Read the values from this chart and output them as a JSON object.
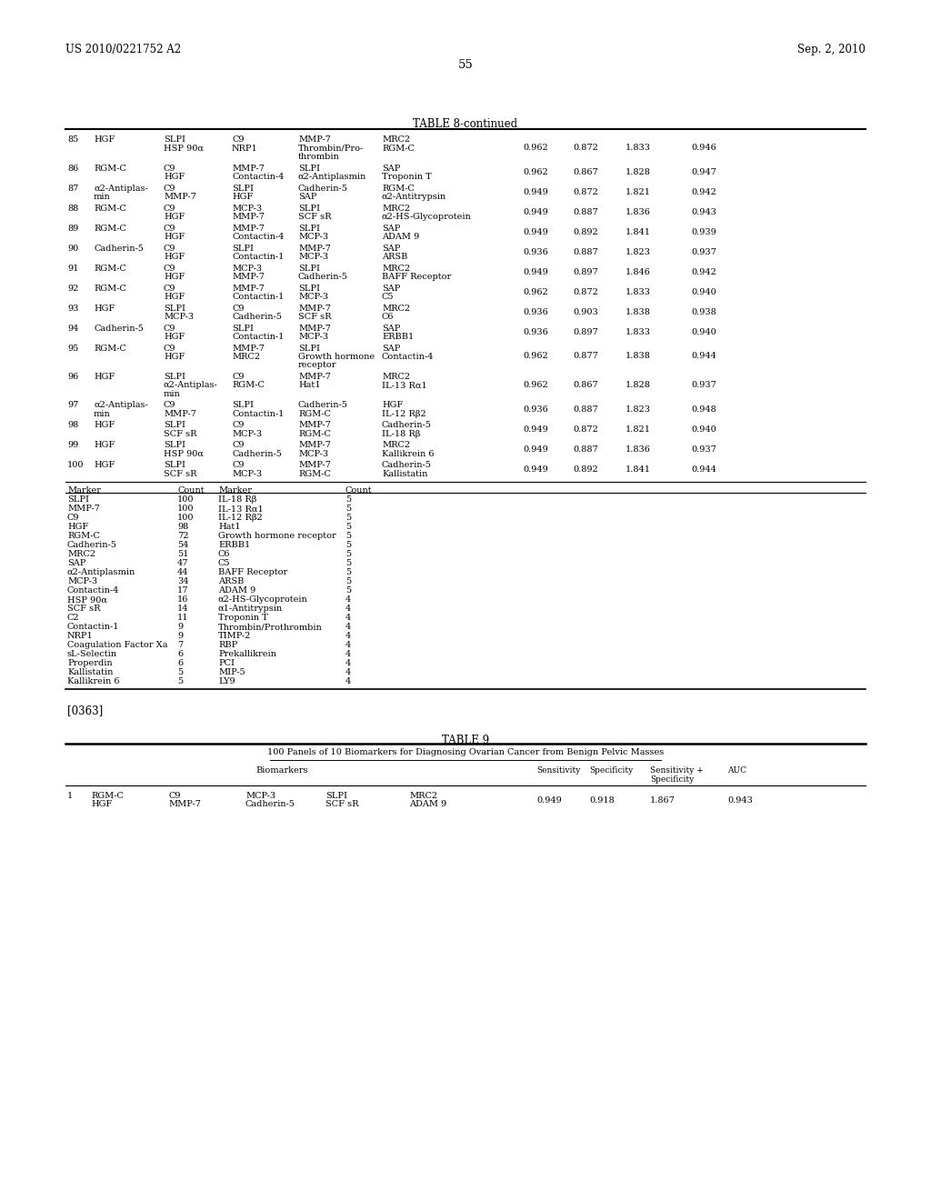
{
  "header_left": "US 2010/0221752 A2",
  "header_right": "Sep. 2, 2010",
  "page_number": "55",
  "table8_title": "TABLE 8-continued",
  "table8_rows": [
    {
      "num": "85",
      "b1": "HGF",
      "b2": "SLPI\nHSP 90α",
      "b3": "C9\nNRP1",
      "b4": "MMP-7\nThrombin/Pro-\nthrombin",
      "b5": "MRC2\nRGM-C",
      "sens": "0.962",
      "spec": "0.872",
      "ss": "1.833",
      "auc": "0.946"
    },
    {
      "num": "86",
      "b1": "RGM-C",
      "b2": "C9\nHGF",
      "b3": "MMP-7\nContactin-4",
      "b4": "SLPI\nα2-Antiplasmin",
      "b5": "SAP\nTroponin T",
      "sens": "0.962",
      "spec": "0.867",
      "ss": "1.828",
      "auc": "0.947"
    },
    {
      "num": "87",
      "b1": "α2-Antiplas-\nmin",
      "b2": "C9\nMMP-7",
      "b3": "SLPI\nHGF",
      "b4": "Cadherin-5\nSAP",
      "b5": "RGM-C\nα2-Antitrypsin",
      "sens": "0.949",
      "spec": "0.872",
      "ss": "1.821",
      "auc": "0.942"
    },
    {
      "num": "88",
      "b1": "RGM-C",
      "b2": "C9\nHGF",
      "b3": "MCP-3\nMMP-7",
      "b4": "SLPI\nSCF sR",
      "b5": "MRC2\nα2-HS-Glycoprotein",
      "sens": "0.949",
      "spec": "0.887",
      "ss": "1.836",
      "auc": "0.943"
    },
    {
      "num": "89",
      "b1": "RGM-C",
      "b2": "C9\nHGF",
      "b3": "MMP-7\nContactin-4",
      "b4": "SLPI\nMCP-3",
      "b5": "SAP\nADAM 9",
      "sens": "0.949",
      "spec": "0.892",
      "ss": "1.841",
      "auc": "0.939"
    },
    {
      "num": "90",
      "b1": "Cadherin-5",
      "b2": "C9\nHGF",
      "b3": "SLPI\nContactin-1",
      "b4": "MMP-7\nMCP-3",
      "b5": "SAP\nARSB",
      "sens": "0.936",
      "spec": "0.887",
      "ss": "1.823",
      "auc": "0.937"
    },
    {
      "num": "91",
      "b1": "RGM-C",
      "b2": "C9\nHGF",
      "b3": "MCP-3\nMMP-7",
      "b4": "SLPI\nCadherin-5",
      "b5": "MRC2\nBAFF Receptor",
      "sens": "0.949",
      "spec": "0.897",
      "ss": "1.846",
      "auc": "0.942"
    },
    {
      "num": "92",
      "b1": "RGM-C",
      "b2": "C9\nHGF",
      "b3": "MMP-7\nContactin-1",
      "b4": "SLPI\nMCP-3",
      "b5": "SAP\nC5",
      "sens": "0.962",
      "spec": "0.872",
      "ss": "1.833",
      "auc": "0.940"
    },
    {
      "num": "93",
      "b1": "HGF",
      "b2": "SLPI\nMCP-3",
      "b3": "C9\nCadherin-5",
      "b4": "MMP-7\nSCF sR",
      "b5": "MRC2\nC6",
      "sens": "0.936",
      "spec": "0.903",
      "ss": "1.838",
      "auc": "0.938"
    },
    {
      "num": "94",
      "b1": "Cadherin-5",
      "b2": "C9\nHGF",
      "b3": "SLPI\nContactin-1",
      "b4": "MMP-7\nMCP-3",
      "b5": "SAP\nERBB1",
      "sens": "0.936",
      "spec": "0.897",
      "ss": "1.833",
      "auc": "0.940"
    },
    {
      "num": "95",
      "b1": "RGM-C",
      "b2": "C9\nHGF",
      "b3": "MMP-7\nMRC2",
      "b4": "SLPI\nGrowth hormone\nreceptor",
      "b5": "SAP\nContactin-4",
      "sens": "0.962",
      "spec": "0.877",
      "ss": "1.838",
      "auc": "0.944"
    },
    {
      "num": "96",
      "b1": "HGF",
      "b2": "SLPI\nα2-Antiplas-\nmin",
      "b3": "C9\nRGM-C",
      "b4": "MMP-7\nHat1",
      "b5": "MRC2\nIL-13 Rα1",
      "sens": "0.962",
      "spec": "0.867",
      "ss": "1.828",
      "auc": "0.937"
    },
    {
      "num": "97",
      "b1": "α2-Antiplas-\nmin",
      "b2": "C9\nMMP-7",
      "b3": "SLPI\nContactin-1",
      "b4": "Cadherin-5\nRGM-C",
      "b5": "HGF\nIL-12 Rβ2",
      "sens": "0.936",
      "spec": "0.887",
      "ss": "1.823",
      "auc": "0.948"
    },
    {
      "num": "98",
      "b1": "HGF",
      "b2": "SLPI\nSCF sR",
      "b3": "C9\nMCP-3",
      "b4": "MMP-7\nRGM-C",
      "b5": "Cadherin-5\nIL-18 Rβ",
      "sens": "0.949",
      "spec": "0.872",
      "ss": "1.821",
      "auc": "0.940"
    },
    {
      "num": "99",
      "b1": "HGF",
      "b2": "SLPI\nHSP 90α",
      "b3": "C9\nCadherin-5",
      "b4": "MMP-7\nMCP-3",
      "b5": "MRC2\nKallikrein 6",
      "sens": "0.949",
      "spec": "0.887",
      "ss": "1.836",
      "auc": "0.937"
    },
    {
      "num": "100",
      "b1": "HGF",
      "b2": "SLPI\nSCF sR",
      "b3": "C9\nMCP-3",
      "b4": "MMP-7\nRGM-C",
      "b5": "Cadherin-5\nKallistatin",
      "sens": "0.949",
      "spec": "0.892",
      "ss": "1.841",
      "auc": "0.944"
    }
  ],
  "marker_table_rows": [
    [
      "SLPI",
      "100",
      "IL-18 Rβ",
      "5"
    ],
    [
      "MMP-7",
      "100",
      "IL-13 Rα1",
      "5"
    ],
    [
      "C9",
      "100",
      "IL-12 Rβ2",
      "5"
    ],
    [
      "HGF",
      "98",
      "Hat1",
      "5"
    ],
    [
      "RGM-C",
      "72",
      "Growth hormone receptor",
      "5"
    ],
    [
      "Cadherin-5",
      "54",
      "ERBB1",
      "5"
    ],
    [
      "MRC2",
      "51",
      "C6",
      "5"
    ],
    [
      "SAP",
      "47",
      "C5",
      "5"
    ],
    [
      "α2-Antiplasmin",
      "44",
      "BAFF Receptor",
      "5"
    ],
    [
      "MCP-3",
      "34",
      "ARSB",
      "5"
    ],
    [
      "Contactin-4",
      "17",
      "ADAM 9",
      "5"
    ],
    [
      "HSP 90α",
      "16",
      "α2-HS-Glycoprotein",
      "4"
    ],
    [
      "SCF sR",
      "14",
      "α1-Antitrypsin",
      "4"
    ],
    [
      "C2",
      "11",
      "Troponin T",
      "4"
    ],
    [
      "Contactin-1",
      "9",
      "Thrombin/Prothrombin",
      "4"
    ],
    [
      "NRP1",
      "9",
      "TIMP-2",
      "4"
    ],
    [
      "Coagulation Factor Xa",
      "7",
      "RBP",
      "4"
    ],
    [
      "sL-Selectin",
      "6",
      "Prekallikrein",
      "4"
    ],
    [
      "Properdin",
      "6",
      "PCI",
      "4"
    ],
    [
      "Kallistatin",
      "5",
      "MIP-5",
      "4"
    ],
    [
      "Kallikrein 6",
      "5",
      "LY9",
      "4"
    ]
  ],
  "paragraph_ref": "[0363]",
  "table9_title": "TABLE 9",
  "table9_subtitle": "100 Panels of 10 Biomarkers for Diagnosing Ovarian Cancer from Benign Pelvic Masses",
  "table9_rows": [
    {
      "num": "1",
      "b1": "RGM-C\nHGF",
      "b2": "C9\nMMP-7",
      "b3": "MCP-3\nCadherin-5",
      "b4": "SLPI\nSCF sR",
      "b5": "MRC2\nADAM 9",
      "sens": "0.949",
      "spec": "0.918",
      "ss": "1.867",
      "auc": "0.943"
    }
  ],
  "bg_color": "#ffffff",
  "text_color": "#000000",
  "line_color": "#000000"
}
